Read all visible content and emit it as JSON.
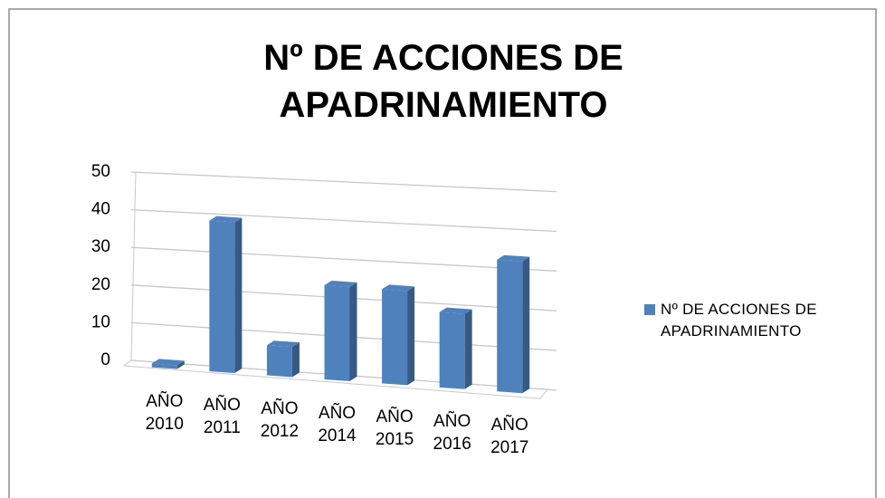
{
  "chart_data": {
    "type": "bar3d",
    "title": "Nº DE ACCIONES DE APADRINAMIENTO",
    "categories": [
      "AÑO 2010",
      "AÑO 2011",
      "AÑO 2012",
      "AÑO 2014",
      "AÑO 2015",
      "AÑO 2016",
      "AÑO 2017"
    ],
    "series": [
      {
        "name": "Nº DE ACCIONES DE APADRINAMIENTO",
        "color": "#4f81bd",
        "values": [
          1,
          40,
          8,
          25,
          25,
          20,
          35
        ]
      }
    ],
    "ylim": [
      0,
      50
    ],
    "yticks": [
      0,
      10,
      20,
      30,
      40,
      50
    ],
    "grid": true,
    "legend": "right"
  }
}
